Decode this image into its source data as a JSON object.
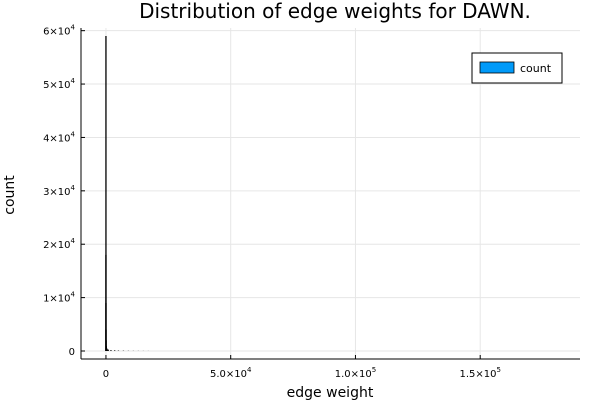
{
  "chart_data": {
    "type": "bar",
    "title": "Distribution of edge weights for DAWN.",
    "xlabel": "edge weight",
    "ylabel": "count",
    "xlim": [
      -10000,
      190000
    ],
    "ylim": [
      -1500,
      60500
    ],
    "x_ticks": [
      {
        "value": 0,
        "mantissa": "0",
        "exp": ""
      },
      {
        "value": 50000,
        "mantissa": "5.0×10",
        "exp": "4"
      },
      {
        "value": 100000,
        "mantissa": "1.0×10",
        "exp": "5"
      },
      {
        "value": 150000,
        "mantissa": "1.5×10",
        "exp": "5"
      }
    ],
    "y_ticks": [
      {
        "value": 0,
        "mantissa": "0",
        "exp": ""
      },
      {
        "value": 10000,
        "mantissa": "1×10",
        "exp": "4"
      },
      {
        "value": 20000,
        "mantissa": "2×10",
        "exp": "4"
      },
      {
        "value": 30000,
        "mantissa": "3×10",
        "exp": "4"
      },
      {
        "value": 40000,
        "mantissa": "4×10",
        "exp": "4"
      },
      {
        "value": 50000,
        "mantissa": "5×10",
        "exp": "4"
      },
      {
        "value": 60000,
        "mantissa": "6×10",
        "exp": "4"
      }
    ],
    "grid": true,
    "legend_position": "top-right",
    "series": [
      {
        "name": "count",
        "color": "#009AF9",
        "bins": [
          {
            "x": 1,
            "value": 59000
          },
          {
            "x": 3,
            "value": 18000
          },
          {
            "x": 8,
            "value": 9000
          },
          {
            "x": 20,
            "value": 4000
          },
          {
            "x": 60,
            "value": 2000
          },
          {
            "x": 150,
            "value": 900
          },
          {
            "x": 400,
            "value": 450
          },
          {
            "x": 900,
            "value": 260
          },
          {
            "x": 2000,
            "value": 160
          },
          {
            "x": 3500,
            "value": 120
          },
          {
            "x": 5000,
            "value": 80
          },
          {
            "x": 7000,
            "value": 60
          },
          {
            "x": 9000,
            "value": 40
          },
          {
            "x": 11000,
            "value": 30
          },
          {
            "x": 13000,
            "value": 25
          },
          {
            "x": 15000,
            "value": 20
          },
          {
            "x": 17000,
            "value": 15
          }
        ]
      }
    ]
  }
}
